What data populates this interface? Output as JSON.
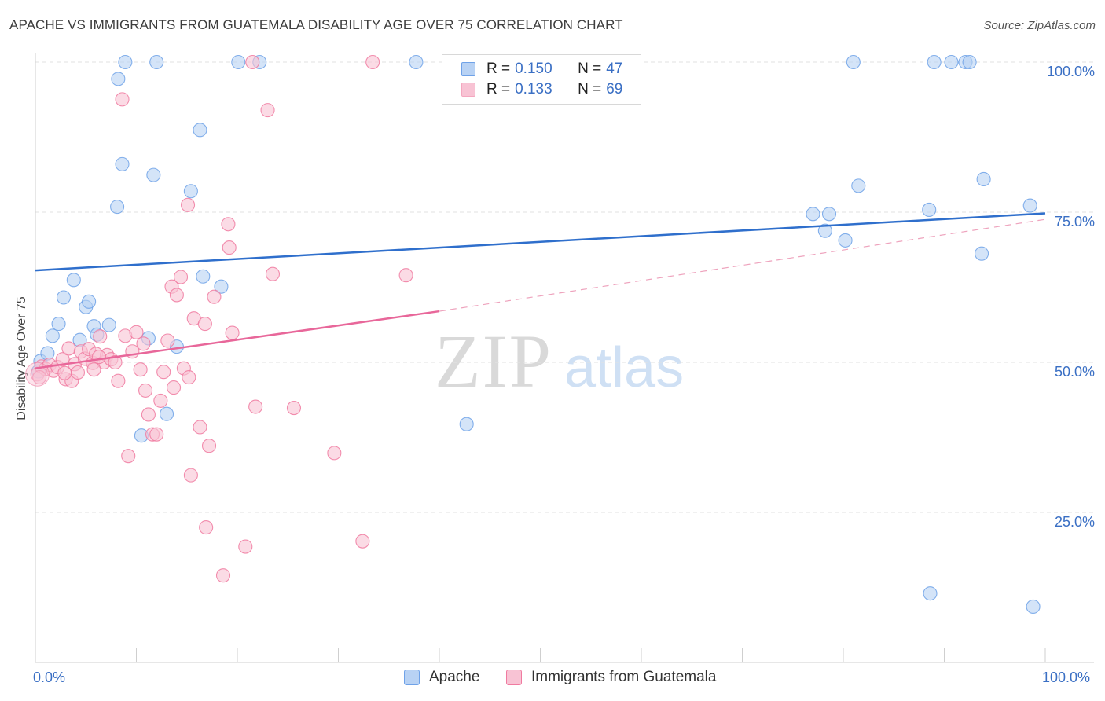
{
  "title": "APACHE VS IMMIGRANTS FROM GUATEMALA DISABILITY AGE OVER 75 CORRELATION CHART",
  "source": "Source: ZipAtlas.com",
  "watermark": {
    "zip": "ZIP",
    "atlas": "atlas"
  },
  "legend": {
    "rows": [
      {
        "r_label": "R = ",
        "r_value": "0.150",
        "n_label": "N = ",
        "n_value": "47",
        "color": "#6fa2e8"
      },
      {
        "r_label": "R = ",
        "r_value": "0.133",
        "n_label": "N = ",
        "n_value": "69",
        "color": "#f4a7bf"
      }
    ]
  },
  "chart_data": {
    "type": "scatter",
    "title": "APACHE VS IMMIGRANTS FROM GUATEMALA DISABILITY AGE OVER 75 CORRELATION CHART",
    "xlabel": "",
    "ylabel": "Disability Age Over 75",
    "xlim": [
      0,
      100
    ],
    "ylim": [
      0,
      100
    ],
    "x_tick_labels": [
      "0.0%",
      "100.0%"
    ],
    "y_tick_labels": [
      "100.0%",
      "75.0%",
      "50.0%",
      "25.0%"
    ],
    "y_ticks": [
      100,
      75,
      50,
      25
    ],
    "grid": true,
    "legend_position": "bottom",
    "series": [
      {
        "name": "Apache",
        "color": "#6fa2e8",
        "fill": "#b8d2f4",
        "trend": {
          "x": [
            0,
            100
          ],
          "y": [
            65.3,
            74.8
          ],
          "dashed_from": null
        },
        "points": [
          [
            0.3,
            48.5
          ],
          [
            0.5,
            50.2
          ],
          [
            1.2,
            51.5
          ],
          [
            1.7,
            54.4
          ],
          [
            2.3,
            56.4
          ],
          [
            2.8,
            60.8
          ],
          [
            3.8,
            63.7
          ],
          [
            4.4,
            53.7
          ],
          [
            5.0,
            59.2
          ],
          [
            5.3,
            60.1
          ],
          [
            5.8,
            56.0
          ],
          [
            6.1,
            54.6
          ],
          [
            7.3,
            56.2
          ],
          [
            8.1,
            75.9
          ],
          [
            8.6,
            83.0
          ],
          [
            8.2,
            97.2
          ],
          [
            8.9,
            100
          ],
          [
            10.5,
            37.8
          ],
          [
            11.2,
            54.0
          ],
          [
            11.7,
            81.2
          ],
          [
            12.0,
            100
          ],
          [
            13.0,
            41.4
          ],
          [
            14.0,
            52.6
          ],
          [
            15.4,
            78.5
          ],
          [
            16.3,
            88.7
          ],
          [
            16.6,
            64.3
          ],
          [
            18.4,
            62.6
          ],
          [
            20.1,
            100
          ],
          [
            22.2,
            100
          ],
          [
            37.7,
            100
          ],
          [
            42.7,
            39.7
          ],
          [
            77.0,
            74.7
          ],
          [
            78.2,
            71.9
          ],
          [
            78.6,
            74.7
          ],
          [
            80.2,
            70.3
          ],
          [
            81.0,
            100
          ],
          [
            81.5,
            79.4
          ],
          [
            88.5,
            75.4
          ],
          [
            88.6,
            11.5
          ],
          [
            89.0,
            100
          ],
          [
            92.1,
            100
          ],
          [
            92.5,
            100
          ],
          [
            93.7,
            68.1
          ],
          [
            93.9,
            80.5
          ],
          [
            98.5,
            76.1
          ],
          [
            98.8,
            9.3
          ],
          [
            90.7,
            100
          ]
        ]
      },
      {
        "name": "Immigrants from Guatemala",
        "color": "#f07aa0",
        "fill": "#f8c3d4",
        "trend": {
          "x": [
            0,
            40,
            100
          ],
          "y": [
            49.0,
            58.5,
            73.8
          ],
          "dashed_from": 40
        },
        "points": [
          [
            0.2,
            48.0
          ],
          [
            0.6,
            49.3
          ],
          [
            1.0,
            48.9
          ],
          [
            1.4,
            49.6
          ],
          [
            1.8,
            48.6
          ],
          [
            2.2,
            49.2
          ],
          [
            2.7,
            50.5
          ],
          [
            3.0,
            47.2
          ],
          [
            3.3,
            52.3
          ],
          [
            3.6,
            46.9
          ],
          [
            3.9,
            49.7
          ],
          [
            4.2,
            48.3
          ],
          [
            4.5,
            51.8
          ],
          [
            4.9,
            50.6
          ],
          [
            5.3,
            52.2
          ],
          [
            5.7,
            49.9
          ],
          [
            6.0,
            51.4
          ],
          [
            6.4,
            54.3
          ],
          [
            6.8,
            50.0
          ],
          [
            7.1,
            51.2
          ],
          [
            7.5,
            50.5
          ],
          [
            7.9,
            50.0
          ],
          [
            8.2,
            46.9
          ],
          [
            8.6,
            93.8
          ],
          [
            8.9,
            54.4
          ],
          [
            9.2,
            34.4
          ],
          [
            9.6,
            51.8
          ],
          [
            10.0,
            55.0
          ],
          [
            10.4,
            48.8
          ],
          [
            10.7,
            53.1
          ],
          [
            10.9,
            45.3
          ],
          [
            11.2,
            41.3
          ],
          [
            11.6,
            38.0
          ],
          [
            12.0,
            38.0
          ],
          [
            12.4,
            43.6
          ],
          [
            12.7,
            48.4
          ],
          [
            13.1,
            53.6
          ],
          [
            13.5,
            62.6
          ],
          [
            13.7,
            45.8
          ],
          [
            14.0,
            61.2
          ],
          [
            14.4,
            64.2
          ],
          [
            14.7,
            49.0
          ],
          [
            15.1,
            76.2
          ],
          [
            15.2,
            47.5
          ],
          [
            15.4,
            31.2
          ],
          [
            15.7,
            57.3
          ],
          [
            16.3,
            39.2
          ],
          [
            16.8,
            56.4
          ],
          [
            16.9,
            22.5
          ],
          [
            17.2,
            36.1
          ],
          [
            17.7,
            60.9
          ],
          [
            18.6,
            14.5
          ],
          [
            19.1,
            73.0
          ],
          [
            19.2,
            69.1
          ],
          [
            19.5,
            54.9
          ],
          [
            20.8,
            19.3
          ],
          [
            21.5,
            100
          ],
          [
            21.8,
            42.6
          ],
          [
            23.0,
            92.0
          ],
          [
            23.5,
            64.7
          ],
          [
            25.6,
            42.4
          ],
          [
            29.6,
            34.9
          ],
          [
            32.4,
            20.2
          ],
          [
            33.4,
            100
          ],
          [
            36.7,
            64.5
          ],
          [
            5.8,
            48.8
          ],
          [
            6.3,
            50.9
          ],
          [
            2.9,
            48.2
          ],
          [
            0.4,
            47.5
          ]
        ]
      }
    ]
  },
  "bottom_legend": {
    "items": [
      {
        "label": "Apache",
        "color": "#6fa2e8",
        "fill": "#b8d2f4"
      },
      {
        "label": "Immigrants from Guatemala",
        "color": "#f07aa0",
        "fill": "#f8c3d4"
      }
    ]
  }
}
